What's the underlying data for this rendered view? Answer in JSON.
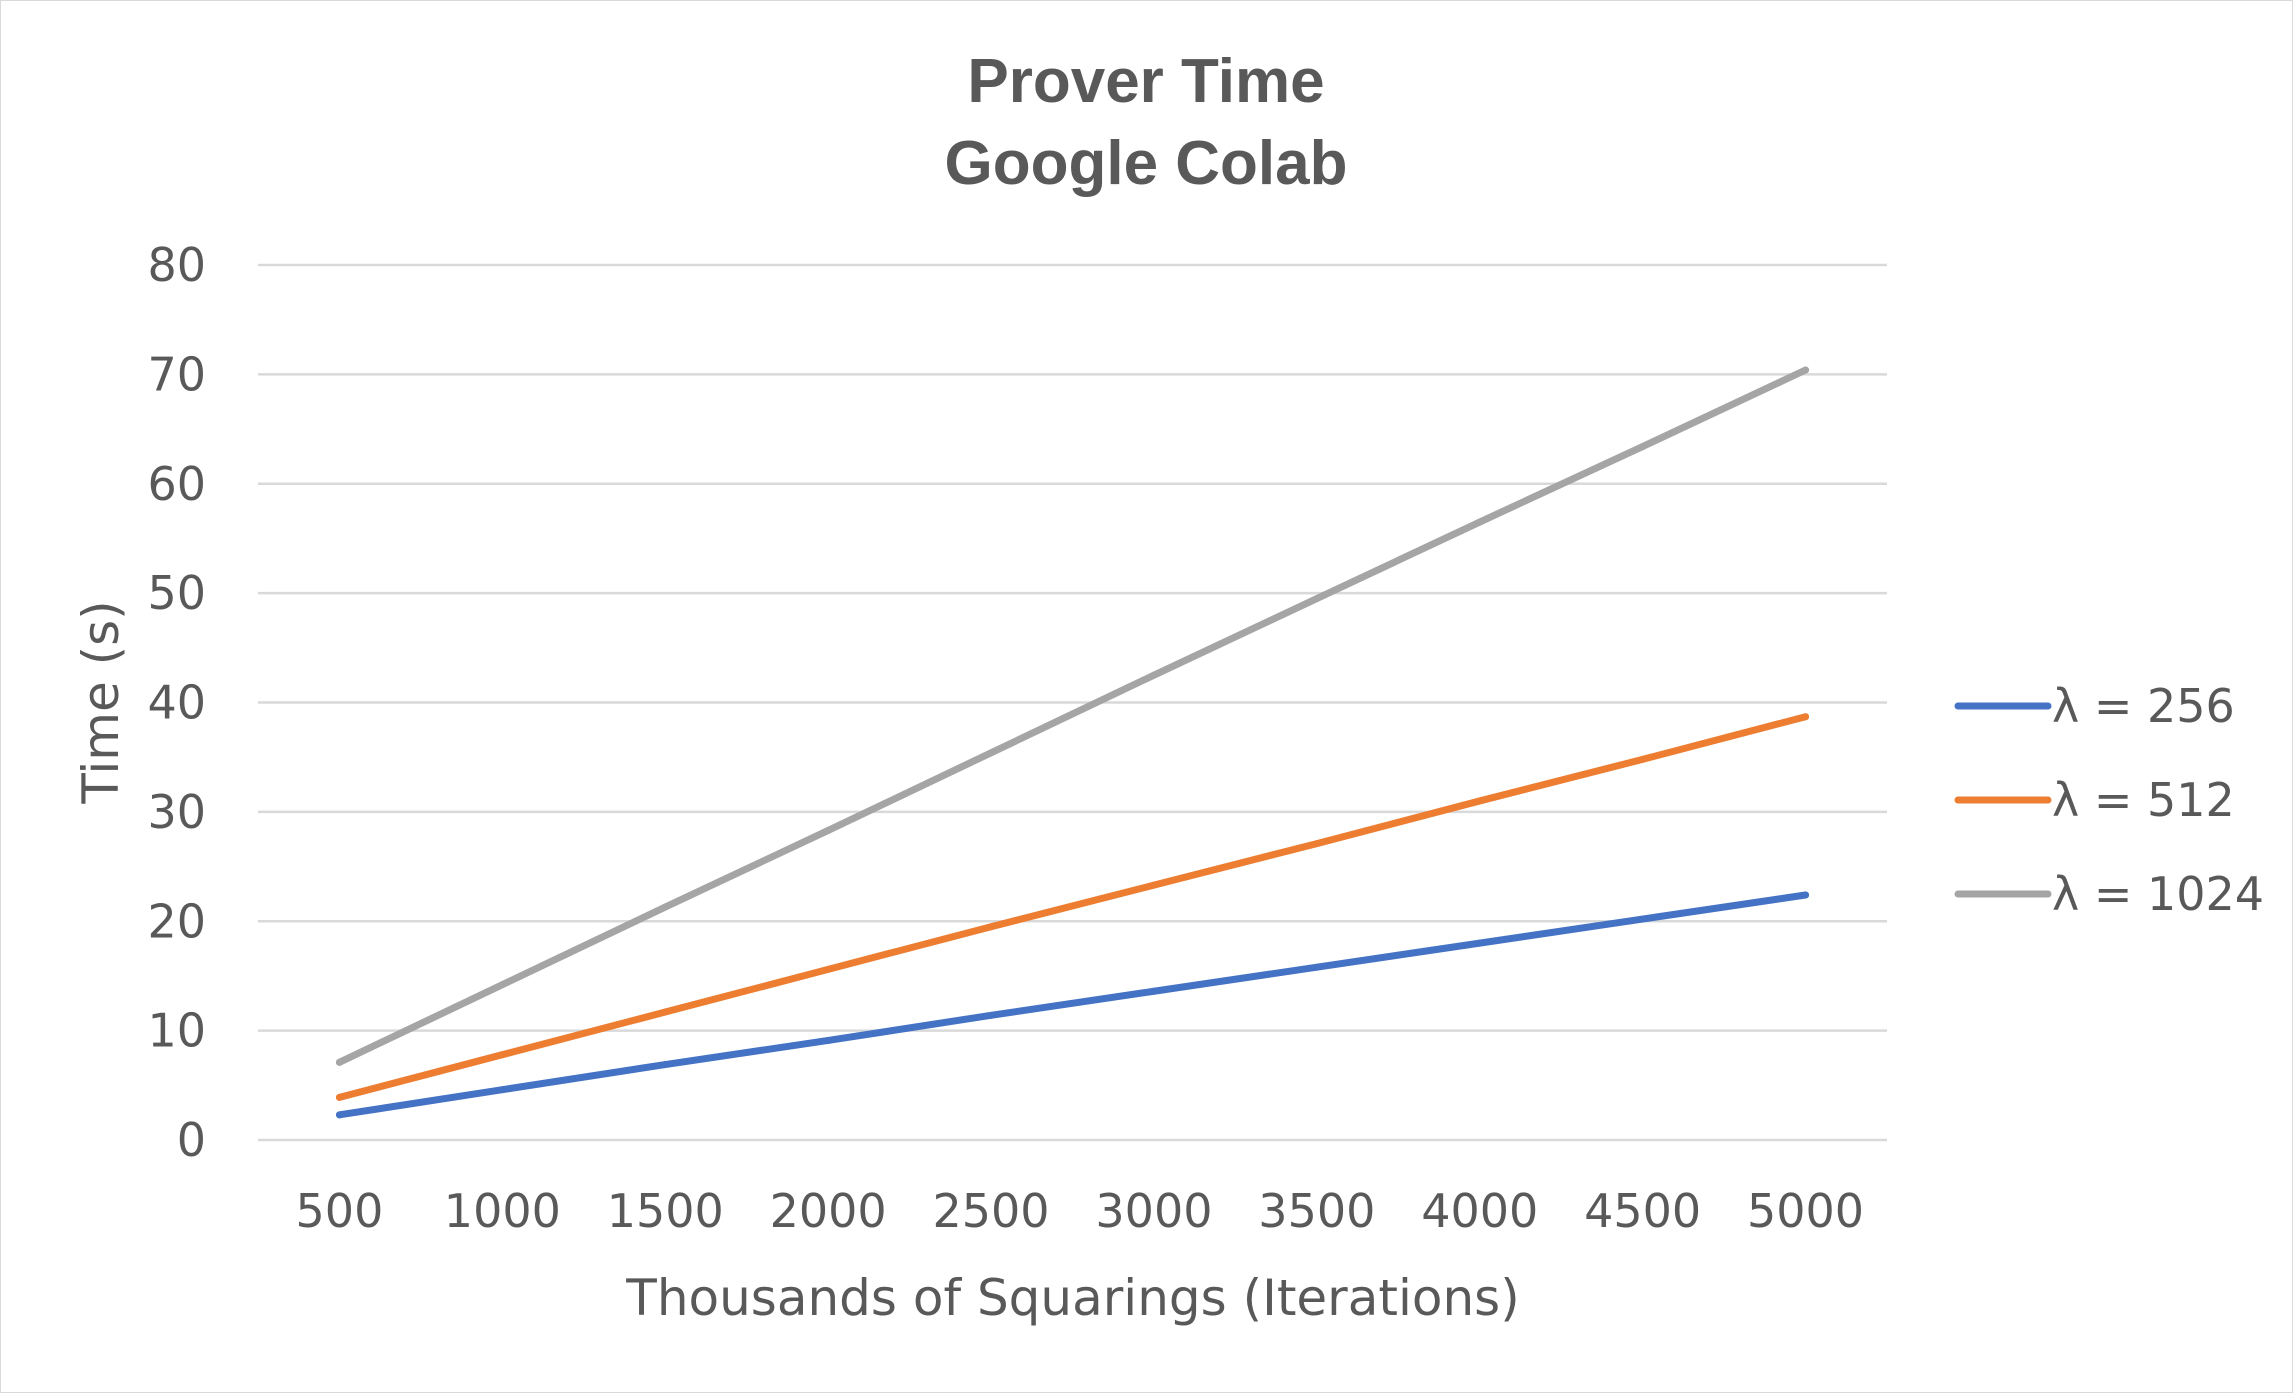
{
  "chart_data": {
    "type": "line",
    "title": "Prover Time",
    "subtitle": "Google Colab",
    "xlabel": "Thousands of Squarings (Iterations)",
    "ylabel": "Time (s)",
    "categories": [
      "500",
      "1000",
      "1500",
      "2000",
      "2500",
      "3000",
      "3500",
      "4000",
      "4500",
      "5000"
    ],
    "yticks": [
      "0",
      "10",
      "20",
      "30",
      "40",
      "50",
      "60",
      "70",
      "80"
    ],
    "ylim": [
      0,
      80
    ],
    "grid": true,
    "legend_position": "right",
    "series": [
      {
        "name": "λ = 256",
        "color": "#4472C4",
        "values": [
          2.3,
          4.6,
          6.9,
          9.1,
          11.4,
          13.6,
          15.8,
          18.0,
          20.2,
          22.4
        ]
      },
      {
        "name": "λ = 512",
        "color": "#ED7D31",
        "values": [
          3.9,
          7.8,
          11.7,
          15.6,
          19.5,
          23.3,
          27.1,
          31.0,
          34.8,
          38.7
        ]
      },
      {
        "name": "λ = 1024",
        "color": "#A5A5A5",
        "values": [
          7.1,
          14.2,
          21.3,
          28.3,
          35.4,
          42.5,
          49.5,
          56.5,
          63.4,
          70.4
        ]
      }
    ]
  }
}
